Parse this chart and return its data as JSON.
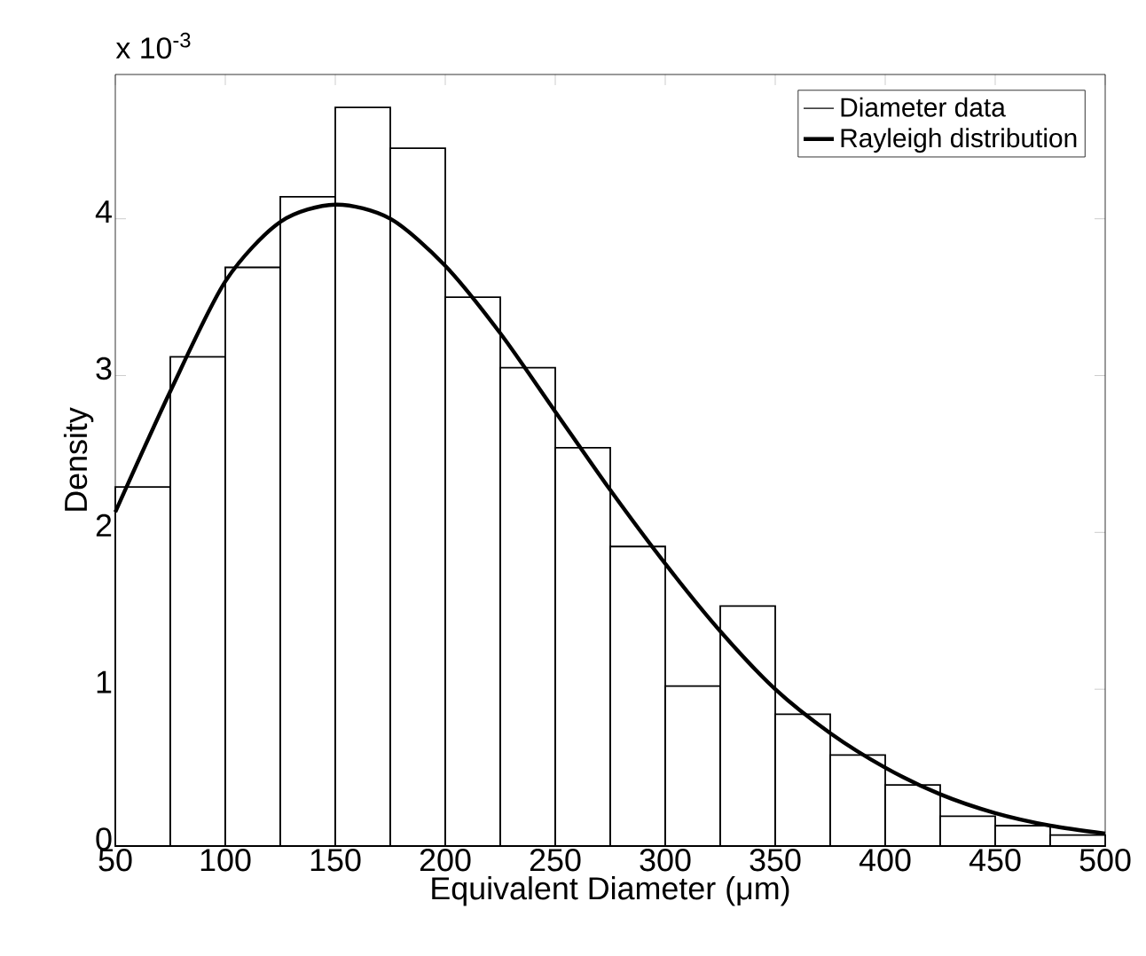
{
  "chart_data": {
    "type": "histogram",
    "xlabel": "Equivalent Diameter (μm)",
    "ylabel": "Density",
    "annotations": [
      "x 10$^{-3}$"
    ],
    "xlim": [
      50,
      500
    ],
    "ylim": [
      0,
      4.92
    ],
    "xticks": [
      50,
      100,
      150,
      200,
      250,
      300,
      350,
      400,
      450,
      500
    ],
    "yticks": [
      0,
      1,
      2,
      3,
      4
    ],
    "grid": false,
    "legend": "top right",
    "series": [
      {
        "name": "Diameter data",
        "color": "#000000",
        "bins": [
          50,
          75,
          100,
          125,
          150,
          175,
          200,
          225,
          250,
          275,
          300,
          325,
          350,
          375,
          400,
          425,
          450,
          475,
          500
        ],
        "values": [
          2.29,
          3.12,
          3.69,
          4.14,
          4.71,
          4.45,
          3.5,
          3.05,
          2.54,
          1.91,
          1.02,
          1.53,
          0.84,
          0.58,
          0.39,
          0.19,
          0.13,
          0.07
        ]
      },
      {
        "name": "Rayleigh distribution",
        "type": "line",
        "color": "#000000",
        "x": [
          50,
          75,
          100,
          125,
          150,
          175,
          200,
          225,
          250,
          275,
          300,
          325,
          350,
          375,
          400,
          425,
          450,
          475,
          500
        ],
        "values": [
          2.13,
          2.9,
          3.6,
          3.98,
          4.09,
          4.0,
          3.7,
          3.27,
          2.77,
          2.27,
          1.8,
          1.37,
          1.0,
          0.72,
          0.5,
          0.33,
          0.21,
          0.13,
          0.08
        ]
      }
    ]
  }
}
